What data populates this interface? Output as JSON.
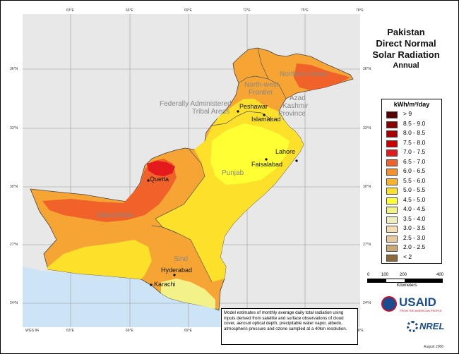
{
  "title": {
    "line1": "Pakistan",
    "line2": "Direct Normal",
    "line3": "Solar Radiation",
    "line4": "Annual"
  },
  "legend": {
    "unit": "kWh/m²/day",
    "items": [
      {
        "label": "> 9",
        "color": "#5a0000"
      },
      {
        "label": "8.5 - 9.0",
        "color": "#8b0000"
      },
      {
        "label": "8.0 - 8.5",
        "color": "#a80000"
      },
      {
        "label": "7.5 - 8.0",
        "color": "#cc0000"
      },
      {
        "label": "7.0 - 7.5",
        "color": "#e41a1c"
      },
      {
        "label": "6.5 - 7.0",
        "color": "#f0622a"
      },
      {
        "label": "6.0 - 6.5",
        "color": "#f5902e"
      },
      {
        "label": "5.5 - 6.0",
        "color": "#f8b32e"
      },
      {
        "label": "5.0 - 5.5",
        "color": "#fde029"
      },
      {
        "label": "4.5 - 5.0",
        "color": "#ffff33"
      },
      {
        "label": "4.0 - 4.5",
        "color": "#f2f288"
      },
      {
        "label": "3.5 - 4.0",
        "color": "#efeec0"
      },
      {
        "label": "3.0 - 3.5",
        "color": "#f4dcb4"
      },
      {
        "label": "2.5 - 3.0",
        "color": "#e8c99e"
      },
      {
        "label": "2.0 - 2.5",
        "color": "#c9a87a"
      },
      {
        "label": "< 2",
        "color": "#8a6a3a"
      }
    ]
  },
  "longitude_ticks": [
    "63°E",
    "66°E",
    "69°E",
    "72°E",
    "75°E",
    "78°E"
  ],
  "latitude_ticks": [
    "36°N",
    "33°N",
    "30°N",
    "27°N",
    "24°N"
  ],
  "regions": {
    "northern_areas": "Northern Areas",
    "nwfp": [
      "North-west",
      "Frontier"
    ],
    "fata": [
      "Federally Administered",
      "Tribal Areas"
    ],
    "azad": [
      "Azad",
      "Kashmir",
      "Province"
    ],
    "punjab": "Punjab",
    "baluchistan": "Baluchistan",
    "sind": "Sind"
  },
  "cities": {
    "peshawar": "Peshawar",
    "islamabad": "Islamabad",
    "lahore": "Lahore",
    "faisalabad": "Faisalabad",
    "quetta": "Quetta",
    "hyderabad": "Hyderabad",
    "karachi": "Karachi"
  },
  "scale_bar": {
    "labels": [
      "0",
      "100",
      "200",
      "400"
    ],
    "unit": "Kilometers"
  },
  "note": "Model estimates of monthly average daily total radiation using inputs derived from satellite and surface observations of cloud cover, aerosol optical depth, precipitable water vapor, albedo, atmospheric pressure and ozone sampled at a 40km resolution.",
  "logos": {
    "usaid": "USAID",
    "usaid_sub": "FROM THE AMERICAN PEOPLE",
    "nrel": "NREL"
  },
  "projection": "WGS 84",
  "date": "August 2006",
  "colors": {
    "sea": "#cde4f7",
    "neighbour": "#e8e8e8",
    "graticule": "#999999"
  }
}
